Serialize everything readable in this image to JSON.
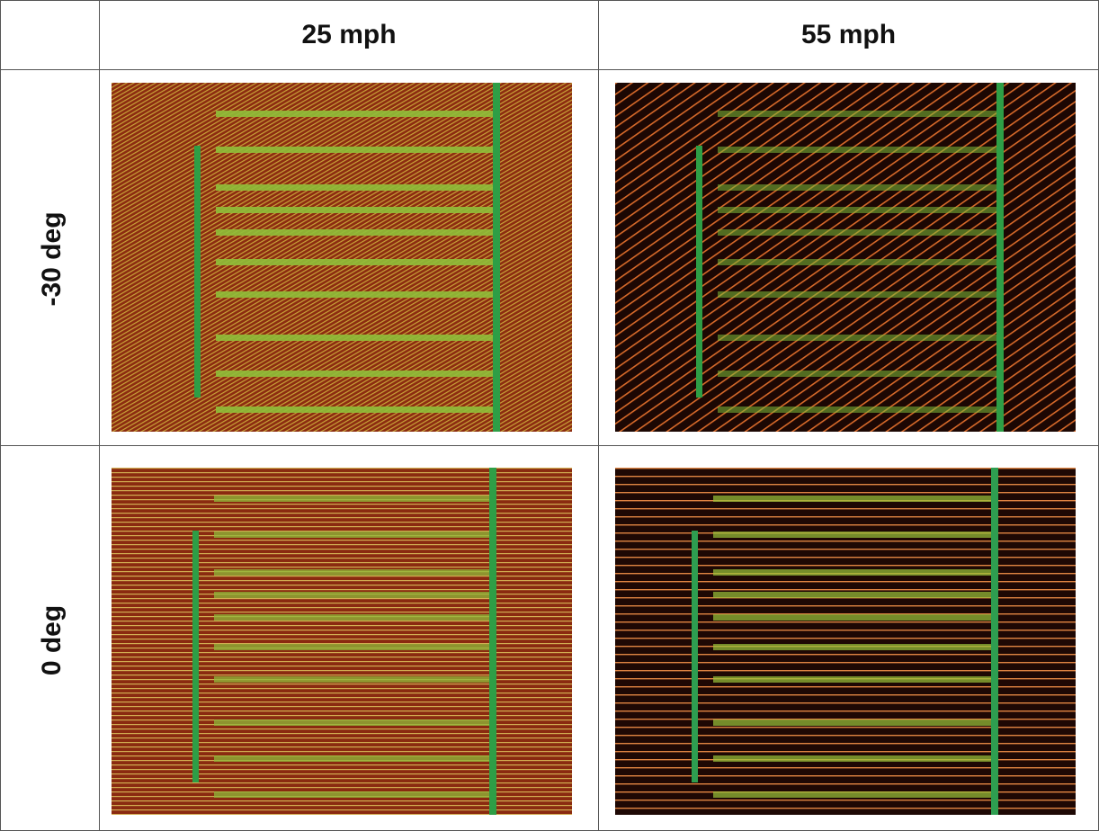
{
  "table": {
    "columns": [
      "25 mph",
      "55 mph"
    ],
    "rows": [
      {
        "label": "-30 deg"
      },
      {
        "label": "0 deg"
      }
    ]
  }
}
